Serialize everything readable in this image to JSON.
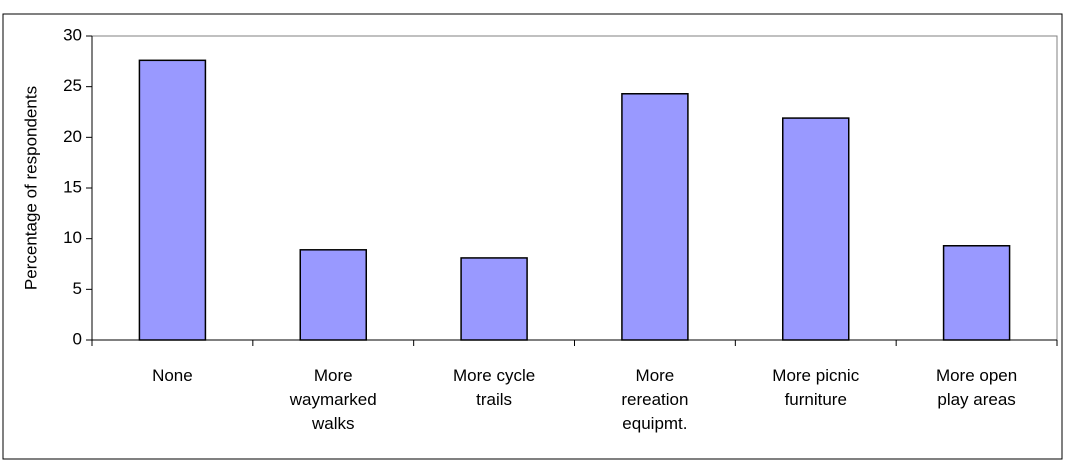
{
  "chart_data": {
    "type": "bar",
    "ylabel": "Percentage of respondents",
    "categories": [
      "None",
      "More waymarked walks",
      "More cycle trails",
      "More rereation equipmt.",
      "More picnic furniture",
      "More open play areas"
    ],
    "values": [
      27.6,
      8.9,
      8.1,
      24.3,
      21.9,
      9.3
    ],
    "color": "#9999ff",
    "ylim": [
      0,
      30
    ],
    "yticks": [
      0,
      5,
      10,
      15,
      20,
      25,
      30
    ],
    "grid": false
  }
}
